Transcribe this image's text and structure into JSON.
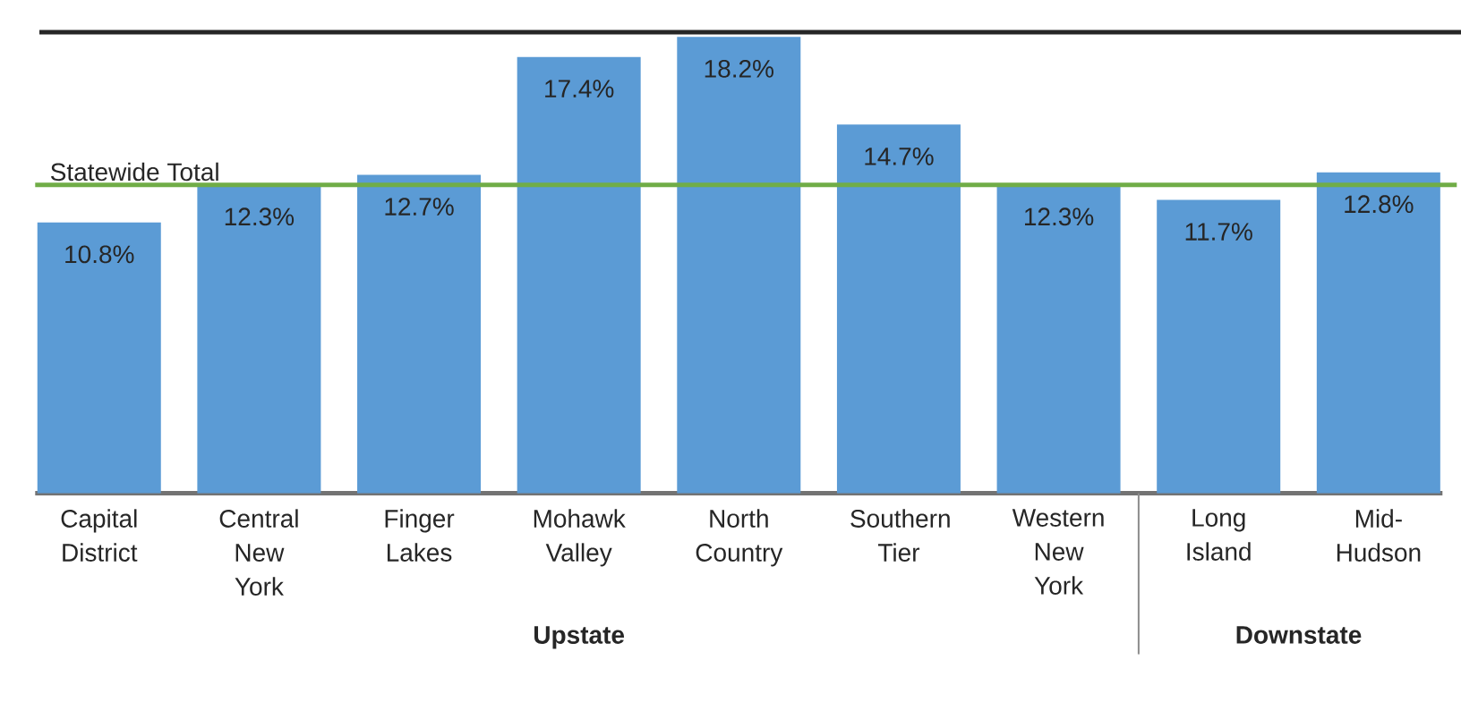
{
  "chart_data": {
    "type": "bar",
    "categories": [
      "Capital District",
      "Central New York",
      "Finger Lakes",
      "Mohawk Valley",
      "North Country",
      "Southern Tier",
      "Western New York",
      "Long Island",
      "Mid-Hudson"
    ],
    "values": [
      10.8,
      12.3,
      12.7,
      17.4,
      18.2,
      14.7,
      12.3,
      11.7,
      12.8
    ],
    "value_labels": [
      "10.8%",
      "12.3%",
      "12.7%",
      "17.4%",
      "18.2%",
      "14.7%",
      "12.3%",
      "11.7%",
      "12.8%"
    ],
    "color": "#5b9bd5",
    "ref_lines": [
      {
        "axis": "y",
        "value": 12.3,
        "label": "Statewide Total",
        "color": "#70ad47"
      }
    ],
    "annotations": [
      "Upstate",
      "Downstate"
    ]
  }
}
